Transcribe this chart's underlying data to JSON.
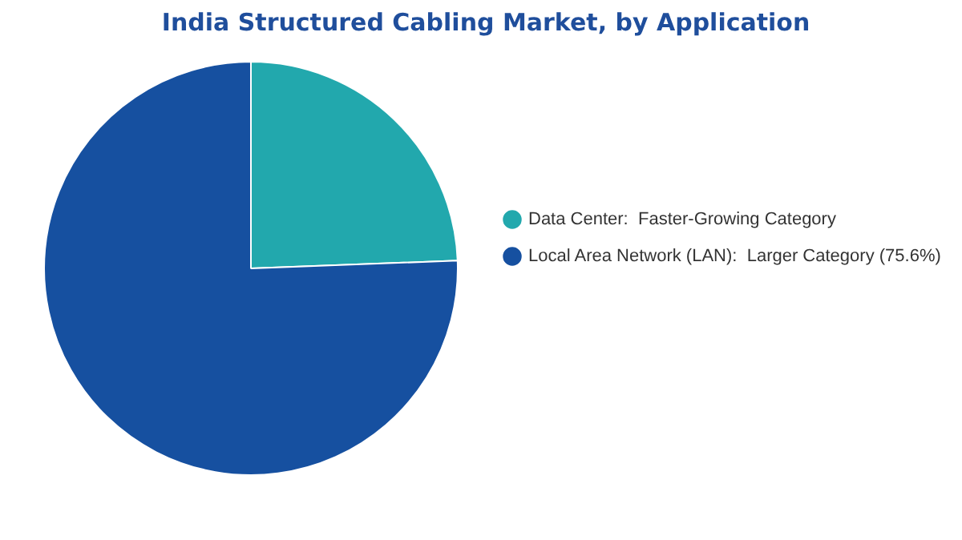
{
  "chart_data": {
    "type": "pie",
    "title": "India Structured Cabling Market, by Application",
    "categories": [
      "Data Center:  Faster-Growing Category",
      "Local Area Network (LAN):  Larger Category (75.6%)"
    ],
    "values": [
      24.4,
      75.6
    ],
    "colors": [
      "#22a8ad",
      "#1650a0"
    ],
    "legend": "right"
  }
}
